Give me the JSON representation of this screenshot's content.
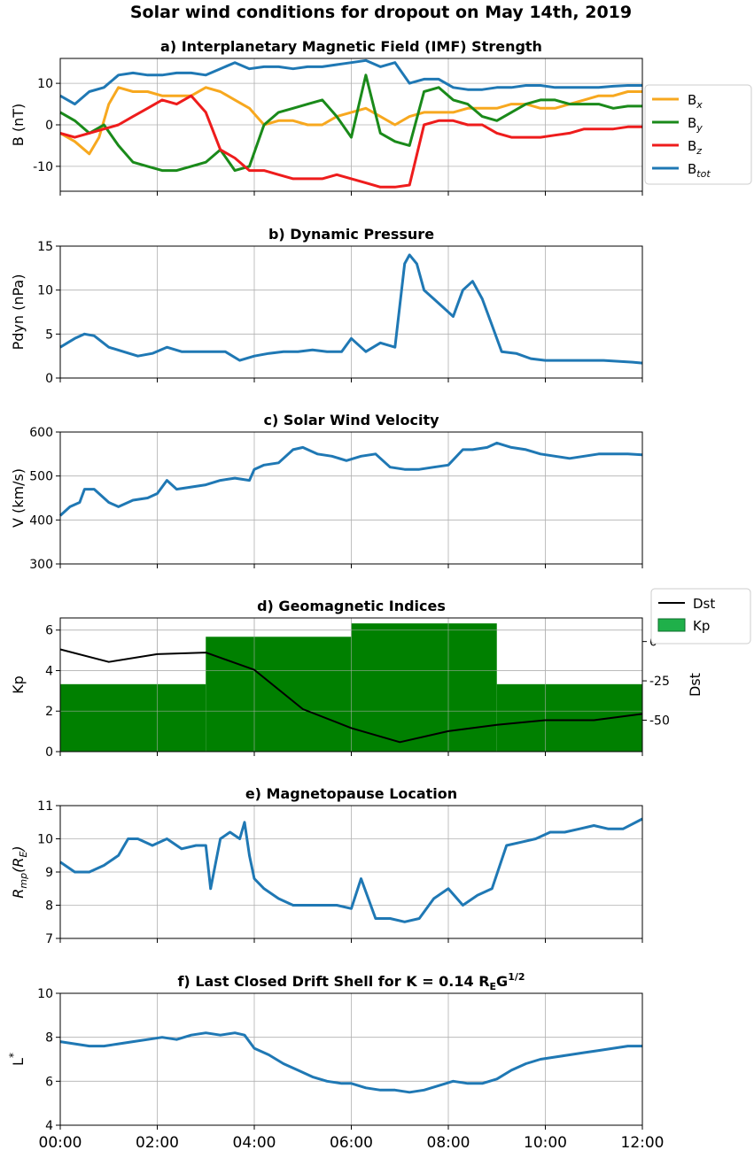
{
  "title": "Solar wind conditions for dropout on May 14th, 2019",
  "x_tick_labels": [
    "00:00",
    "02:00",
    "04:00",
    "06:00",
    "08:00",
    "10:00",
    "12:00"
  ],
  "colors": {
    "Bx": "#f7a81f",
    "By": "#1a8a1a",
    "Bz": "#ee1c1c",
    "Btot": "#1f78b4",
    "Dst": "#000000",
    "Kp": "#008000",
    "Kp_legend": "#1fb04a"
  },
  "chart_data": [
    {
      "id": "a",
      "type": "line",
      "title": "a) Interplanetary Magnetic Field (IMF) Strength",
      "ylabel": "B (nT)",
      "ylim": [
        -16,
        16
      ],
      "yticks": [
        -10,
        0,
        10
      ],
      "xlim": [
        0,
        12
      ],
      "grid": true,
      "legend": "right",
      "series": [
        {
          "key": "Btot",
          "name": "B",
          "name_sub": "tot",
          "x": [
            0,
            0.3,
            0.6,
            0.9,
            1.2,
            1.5,
            1.8,
            2.1,
            2.4,
            2.7,
            3.0,
            3.3,
            3.6,
            3.9,
            4.2,
            4.5,
            4.8,
            5.1,
            5.4,
            5.7,
            6.0,
            6.3,
            6.6,
            6.9,
            7.2,
            7.5,
            7.8,
            8.1,
            8.4,
            8.7,
            9.0,
            9.3,
            9.6,
            9.9,
            10.2,
            10.5,
            10.8,
            11.1,
            11.4,
            11.7,
            12.0
          ],
          "values": [
            7,
            5,
            8,
            9,
            12,
            12.5,
            12,
            12,
            12.5,
            12.5,
            12,
            13.5,
            15,
            13.5,
            14,
            14,
            13.5,
            14,
            14,
            14.5,
            15,
            15.5,
            14,
            15,
            10,
            11,
            11,
            9,
            8.5,
            8.5,
            9,
            9,
            9.5,
            9.5,
            9,
            9,
            9,
            9,
            9.3,
            9.5,
            9.5
          ]
        },
        {
          "key": "Bx",
          "name": "B",
          "name_sub": "x",
          "x": [
            0,
            0.3,
            0.6,
            0.8,
            1.0,
            1.2,
            1.5,
            1.8,
            2.1,
            2.4,
            2.7,
            3.0,
            3.3,
            3.6,
            3.9,
            4.2,
            4.5,
            4.8,
            5.1,
            5.4,
            5.7,
            6.0,
            6.3,
            6.6,
            6.9,
            7.2,
            7.5,
            7.8,
            8.1,
            8.4,
            8.7,
            9.0,
            9.3,
            9.6,
            9.9,
            10.2,
            10.5,
            10.8,
            11.1,
            11.4,
            11.7,
            12.0
          ],
          "values": [
            -2,
            -4,
            -7,
            -3,
            5,
            9,
            8,
            8,
            7,
            7,
            7,
            9,
            8,
            6,
            4,
            0,
            1,
            1,
            0,
            0,
            2,
            3,
            4,
            2,
            0,
            2,
            3,
            3,
            3,
            4,
            4,
            4,
            5,
            5,
            4,
            4,
            5,
            6,
            7,
            7,
            8,
            8
          ]
        },
        {
          "key": "By",
          "name": "B",
          "name_sub": "y",
          "x": [
            0,
            0.3,
            0.6,
            0.9,
            1.2,
            1.5,
            1.8,
            2.1,
            2.4,
            2.7,
            3.0,
            3.3,
            3.6,
            3.9,
            4.2,
            4.5,
            4.8,
            5.1,
            5.4,
            5.7,
            6.0,
            6.3,
            6.6,
            6.9,
            7.2,
            7.5,
            7.8,
            8.1,
            8.4,
            8.7,
            9.0,
            9.3,
            9.6,
            9.9,
            10.2,
            10.5,
            10.8,
            11.1,
            11.4,
            11.7,
            12.0
          ],
          "values": [
            3,
            1,
            -2,
            0,
            -5,
            -9,
            -10,
            -11,
            -11,
            -10,
            -9,
            -6,
            -11,
            -10,
            0,
            3,
            4,
            5,
            6,
            2,
            -3,
            12,
            -2,
            -4,
            -5,
            8,
            9,
            6,
            5,
            2,
            1,
            3,
            5,
            6,
            6,
            5,
            5,
            5,
            4,
            4.5,
            4.5
          ]
        },
        {
          "key": "Bz",
          "name": "B",
          "name_sub": "z",
          "x": [
            0,
            0.3,
            0.6,
            0.9,
            1.2,
            1.5,
            1.8,
            2.1,
            2.4,
            2.7,
            3.0,
            3.3,
            3.6,
            3.9,
            4.2,
            4.5,
            4.8,
            5.1,
            5.4,
            5.7,
            6.0,
            6.3,
            6.6,
            6.9,
            7.2,
            7.5,
            7.8,
            8.1,
            8.4,
            8.7,
            9.0,
            9.3,
            9.6,
            9.9,
            10.2,
            10.5,
            10.8,
            11.1,
            11.4,
            11.7,
            12.0
          ],
          "values": [
            -2,
            -3,
            -2,
            -1,
            0,
            2,
            4,
            6,
            5,
            7,
            3,
            -6,
            -8,
            -11,
            -11,
            -12,
            -13,
            -13,
            -13,
            -12,
            -13,
            -14,
            -15,
            -15,
            -14.5,
            0,
            1,
            1,
            0,
            0,
            -2,
            -3,
            -3,
            -3,
            -2.5,
            -2,
            -1,
            -1,
            -1,
            -0.5,
            -0.5
          ]
        }
      ]
    },
    {
      "id": "b",
      "type": "line",
      "title": "b) Dynamic Pressure",
      "ylabel": "Pdyn (nPa)",
      "ylim": [
        0,
        15
      ],
      "yticks": [
        0,
        5,
        10,
        15
      ],
      "xlim": [
        0,
        12
      ],
      "grid": true,
      "series": [
        {
          "key": "Pdyn",
          "x": [
            0,
            0.3,
            0.5,
            0.7,
            1.0,
            1.3,
            1.6,
            1.9,
            2.2,
            2.5,
            2.8,
            3.1,
            3.4,
            3.7,
            4.0,
            4.3,
            4.6,
            4.9,
            5.2,
            5.5,
            5.8,
            6.0,
            6.3,
            6.6,
            6.9,
            7.1,
            7.2,
            7.35,
            7.5,
            7.7,
            7.9,
            8.1,
            8.3,
            8.5,
            8.7,
            8.9,
            9.1,
            9.4,
            9.7,
            10.0,
            10.3,
            10.6,
            10.9,
            11.2,
            11.5,
            11.8,
            12.0
          ],
          "values": [
            3.5,
            4.5,
            5,
            4.8,
            3.5,
            3,
            2.5,
            2.8,
            3.5,
            3,
            3,
            3,
            3,
            2,
            2.5,
            2.8,
            3,
            3,
            3.2,
            3,
            3,
            4.5,
            3,
            4,
            3.5,
            13,
            14,
            13,
            10,
            9,
            8,
            7,
            10,
            11,
            9,
            6,
            3,
            2.8,
            2.2,
            2,
            2,
            2,
            2,
            2,
            1.9,
            1.8,
            1.7
          ]
        }
      ]
    },
    {
      "id": "c",
      "type": "line",
      "title": "c) Solar Wind Velocity",
      "ylabel": "V (km/s)",
      "ylim": [
        300,
        600
      ],
      "yticks": [
        300,
        400,
        500,
        600
      ],
      "xlim": [
        0,
        12
      ],
      "grid": true,
      "series": [
        {
          "key": "V",
          "x": [
            0,
            0.2,
            0.4,
            0.5,
            0.7,
            1.0,
            1.2,
            1.5,
            1.8,
            2.0,
            2.2,
            2.4,
            2.7,
            3.0,
            3.3,
            3.6,
            3.9,
            4.0,
            4.2,
            4.5,
            4.8,
            5.0,
            5.3,
            5.6,
            5.9,
            6.2,
            6.5,
            6.8,
            7.1,
            7.4,
            7.7,
            8.0,
            8.3,
            8.5,
            8.8,
            9.0,
            9.3,
            9.6,
            9.9,
            10.2,
            10.5,
            10.8,
            11.1,
            11.4,
            11.7,
            12.0
          ],
          "values": [
            410,
            430,
            440,
            470,
            470,
            440,
            430,
            445,
            450,
            460,
            490,
            470,
            475,
            480,
            490,
            495,
            490,
            515,
            525,
            530,
            560,
            565,
            550,
            545,
            535,
            545,
            550,
            520,
            515,
            515,
            520,
            525,
            560,
            560,
            565,
            575,
            565,
            560,
            550,
            545,
            540,
            545,
            550,
            550,
            550,
            548
          ]
        }
      ]
    },
    {
      "id": "d",
      "type": "bar",
      "title": "d) Geomagnetic Indices",
      "ylabel": "Kp",
      "ylabel_right": "Dst",
      "ylim": [
        0,
        6.6
      ],
      "yticks": [
        0,
        2,
        4,
        6
      ],
      "ylim_right": [
        -70,
        15
      ],
      "yticks_right": [
        -50,
        -25,
        0
      ],
      "xlim": [
        0,
        12
      ],
      "grid": true,
      "legend": "top-right",
      "series": [
        {
          "key": "Kp",
          "name": "Kp",
          "type": "step-bar",
          "x": [
            0,
            3,
            6,
            9
          ],
          "widths": [
            3,
            3,
            3,
            3
          ],
          "values": [
            3.33,
            5.67,
            6.33,
            3.33
          ]
        },
        {
          "key": "Dst",
          "name": "Dst",
          "type": "line",
          "axis": "right",
          "x": [
            0,
            1,
            2,
            3,
            4,
            5,
            6,
            7,
            8,
            9,
            10,
            11,
            12
          ],
          "values": [
            -5,
            -13,
            -8,
            -7,
            -18,
            -43,
            -55,
            -64,
            -57,
            -53,
            -50,
            -50,
            -46
          ]
        }
      ]
    },
    {
      "id": "e",
      "type": "line",
      "title": "e) Magnetopause Location",
      "ylabel": "R",
      "ylabel_sub": "mp",
      "ylabel_suffix": "(R",
      "ylabel_suffix_sub": "E",
      "ylabel_end": ")",
      "ylim": [
        7,
        11
      ],
      "yticks": [
        7,
        8,
        9,
        10,
        11
      ],
      "xlim": [
        0,
        12
      ],
      "grid": true,
      "series": [
        {
          "key": "Rmp",
          "x": [
            0,
            0.3,
            0.6,
            0.9,
            1.2,
            1.4,
            1.6,
            1.9,
            2.2,
            2.5,
            2.8,
            3.0,
            3.1,
            3.3,
            3.5,
            3.7,
            3.8,
            3.9,
            4.0,
            4.2,
            4.5,
            4.8,
            5.1,
            5.4,
            5.7,
            6.0,
            6.2,
            6.5,
            6.8,
            7.1,
            7.4,
            7.7,
            8.0,
            8.3,
            8.6,
            8.9,
            9.2,
            9.5,
            9.8,
            10.1,
            10.4,
            10.7,
            11.0,
            11.3,
            11.6,
            12.0
          ],
          "values": [
            9.3,
            9,
            9,
            9.2,
            9.5,
            10,
            10,
            9.8,
            10,
            9.7,
            9.8,
            9.8,
            8.5,
            10,
            10.2,
            10,
            10.5,
            9.5,
            8.8,
            8.5,
            8.2,
            8,
            8,
            8,
            8,
            7.9,
            8.8,
            7.6,
            7.6,
            7.5,
            7.6,
            8.2,
            8.5,
            8,
            8.3,
            8.5,
            9.8,
            9.9,
            10,
            10.2,
            10.2,
            10.3,
            10.4,
            10.3,
            10.3,
            10.6
          ]
        }
      ]
    },
    {
      "id": "f",
      "type": "line",
      "title": "f) Last Closed Drift Shell for K = 0.14 R",
      "title_sub": "E",
      "title_mid": "G",
      "title_sup": "1/2",
      "ylabel": "L",
      "ylabel_sup": "*",
      "ylim": [
        4,
        10
      ],
      "yticks": [
        4,
        6,
        8,
        10
      ],
      "xlim": [
        0,
        12
      ],
      "grid": true,
      "series": [
        {
          "key": "Lstar",
          "x": [
            0,
            0.3,
            0.6,
            0.9,
            1.2,
            1.5,
            1.8,
            2.1,
            2.4,
            2.7,
            3.0,
            3.3,
            3.6,
            3.8,
            4.0,
            4.3,
            4.6,
            4.9,
            5.2,
            5.5,
            5.8,
            6.0,
            6.3,
            6.6,
            6.9,
            7.2,
            7.5,
            7.8,
            8.1,
            8.4,
            8.7,
            9.0,
            9.3,
            9.6,
            9.9,
            10.2,
            10.5,
            10.8,
            11.1,
            11.4,
            11.7,
            12.0
          ],
          "values": [
            7.8,
            7.7,
            7.6,
            7.6,
            7.7,
            7.8,
            7.9,
            8,
            7.9,
            8.1,
            8.2,
            8.1,
            8.2,
            8.1,
            7.5,
            7.2,
            6.8,
            6.5,
            6.2,
            6,
            5.9,
            5.9,
            5.7,
            5.6,
            5.6,
            5.5,
            5.6,
            5.8,
            6,
            5.9,
            5.9,
            6.1,
            6.5,
            6.8,
            7,
            7.1,
            7.2,
            7.3,
            7.4,
            7.5,
            7.6,
            7.6
          ]
        }
      ]
    }
  ]
}
